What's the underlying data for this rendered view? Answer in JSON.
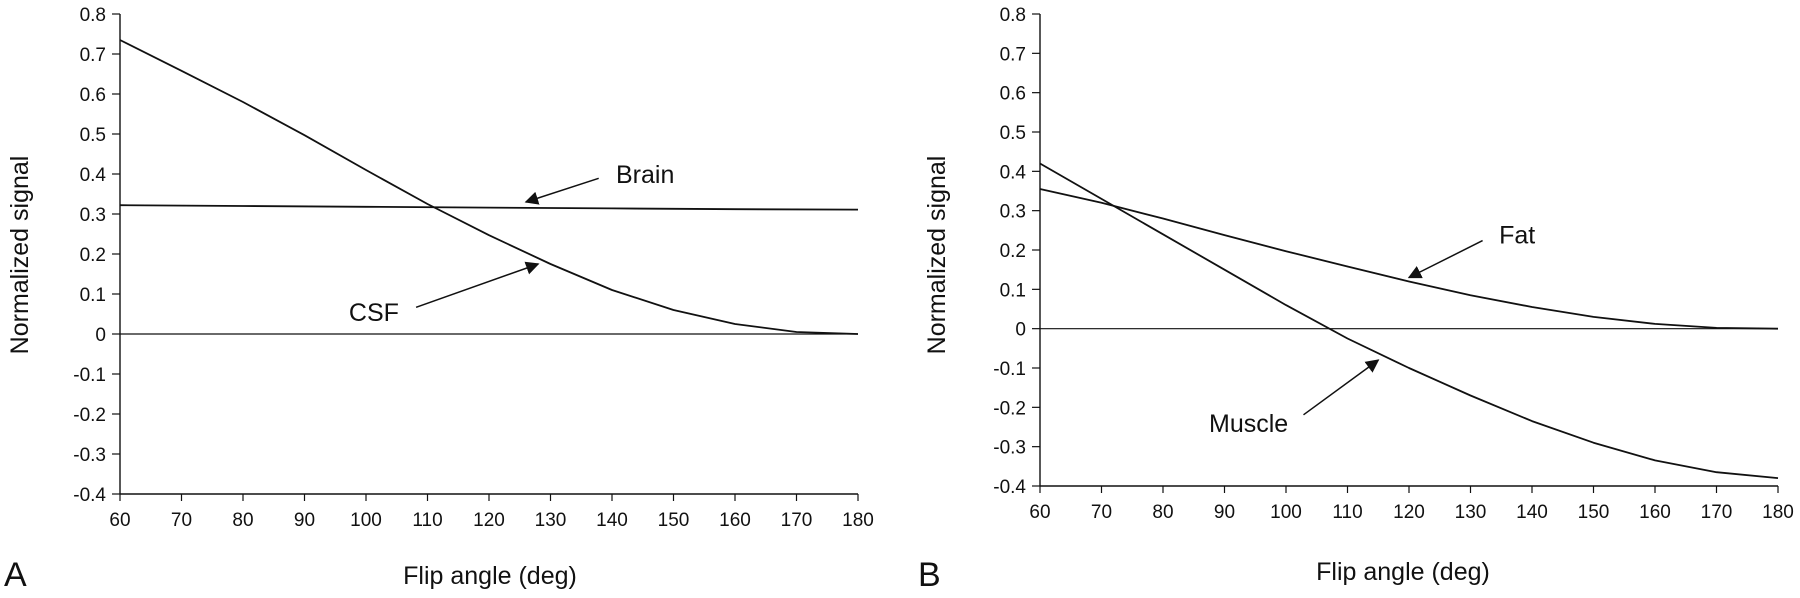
{
  "chart_data": [
    {
      "panel": "A",
      "type": "line",
      "xlabel": "Flip angle (deg)",
      "ylabel": "Normalized signal",
      "xlim": [
        60,
        180
      ],
      "ylim": [
        -0.4,
        0.8
      ],
      "xticks": [
        "60",
        "70",
        "80",
        "90",
        "100",
        "110",
        "120",
        "130",
        "140",
        "150",
        "160",
        "170",
        "180"
      ],
      "yticks": [
        "0.8",
        "0.7",
        "0.6",
        "0.5",
        "0.4",
        "0.3",
        "0.2",
        "0.1",
        "0",
        "-0.1",
        "-0.2",
        "-0.3",
        "-0.4"
      ],
      "grid": false,
      "series": [
        {
          "name": "Brain",
          "x": [
            60,
            80,
            100,
            120,
            140,
            160,
            180
          ],
          "y": [
            0.322,
            0.32,
            0.318,
            0.316,
            0.314,
            0.312,
            0.311
          ]
        },
        {
          "name": "CSF",
          "x": [
            60,
            70,
            80,
            90,
            100,
            110,
            120,
            130,
            140,
            150,
            160,
            170,
            180
          ],
          "y": [
            0.735,
            0.658,
            0.58,
            0.497,
            0.41,
            0.325,
            0.247,
            0.175,
            0.11,
            0.06,
            0.025,
            0.005,
            0.0
          ]
        }
      ],
      "annotations": [
        {
          "text": "Brain",
          "x": 140,
          "y": 0.4,
          "target_x": 126,
          "target_y": 0.33
        },
        {
          "text": "CSF",
          "x": 106,
          "y": 0.055,
          "target_x": 128,
          "target_y": 0.175
        }
      ]
    },
    {
      "panel": "B",
      "type": "line",
      "xlabel": "Flip angle (deg)",
      "ylabel": "Normalized signal",
      "xlim": [
        60,
        180
      ],
      "ylim": [
        -0.4,
        0.8
      ],
      "xticks": [
        "60",
        "70",
        "80",
        "90",
        "100",
        "110",
        "120",
        "130",
        "140",
        "150",
        "160",
        "170",
        "180"
      ],
      "yticks": [
        "0.8",
        "0.7",
        "0.6",
        "0.5",
        "0.4",
        "0.3",
        "0.2",
        "0.1",
        "0",
        "-0.1",
        "-0.2",
        "-0.3",
        "-0.4"
      ],
      "grid": false,
      "series": [
        {
          "name": "Fat",
          "x": [
            60,
            70,
            80,
            90,
            100,
            110,
            120,
            130,
            140,
            150,
            160,
            170,
            180
          ],
          "y": [
            0.355,
            0.32,
            0.28,
            0.238,
            0.197,
            0.158,
            0.12,
            0.085,
            0.055,
            0.03,
            0.012,
            0.002,
            0.0
          ]
        },
        {
          "name": "Muscle",
          "x": [
            60,
            70,
            80,
            90,
            100,
            110,
            120,
            130,
            140,
            150,
            160,
            170,
            180
          ],
          "y": [
            0.42,
            0.33,
            0.24,
            0.15,
            0.06,
            -0.025,
            -0.1,
            -0.17,
            -0.235,
            -0.29,
            -0.335,
            -0.365,
            -0.38
          ]
        }
      ],
      "annotations": [
        {
          "text": "Fat",
          "x": 134,
          "y": 0.24,
          "target_x": 120,
          "target_y": 0.13
        },
        {
          "text": "Muscle",
          "x": 101,
          "y": -0.24,
          "target_x": 115,
          "target_y": -0.08
        }
      ]
    }
  ]
}
